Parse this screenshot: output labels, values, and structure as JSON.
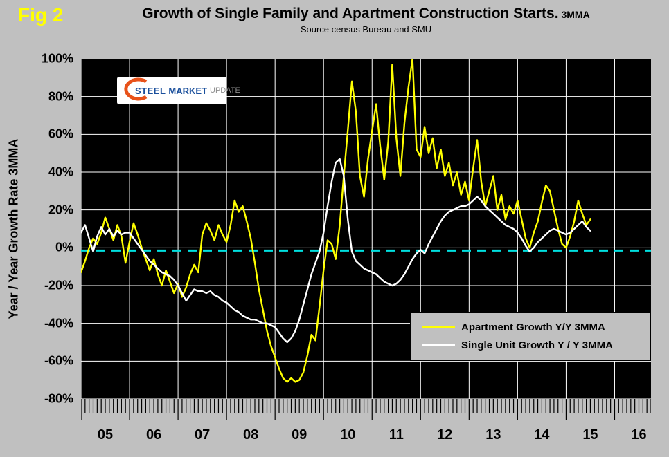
{
  "header": {
    "fig_label": "Fig 2",
    "title": "Growth of Single Family and Apartment Construction Starts.",
    "title_suffix": " 3MMA",
    "subtitle": "Source census Bureau and SMU"
  },
  "logo": {
    "part1": "STEEL",
    "part2": "MARKET",
    "part3": "UPDATE"
  },
  "axes": {
    "y_title": "Year / Year Growth Rate 3MMA",
    "y_range": [
      -80,
      100
    ],
    "x_range": [
      2005,
      2016.75
    ],
    "y_ticks": [
      {
        "value": 100,
        "label": "100%"
      },
      {
        "value": 80,
        "label": "80%"
      },
      {
        "value": 60,
        "label": "60%"
      },
      {
        "value": 40,
        "label": "40%"
      },
      {
        "value": 20,
        "label": "20%"
      },
      {
        "value": 0,
        "label": "0%"
      },
      {
        "value": -20,
        "label": "-20%"
      },
      {
        "value": -40,
        "label": "-40%"
      },
      {
        "value": -60,
        "label": "-60%"
      },
      {
        "value": -80,
        "label": "-80%"
      }
    ],
    "x_tick_labels": [
      {
        "year": 2005,
        "label": "05"
      },
      {
        "year": 2006,
        "label": "06"
      },
      {
        "year": 2007,
        "label": "07"
      },
      {
        "year": 2008,
        "label": "08"
      },
      {
        "year": 2009,
        "label": "09"
      },
      {
        "year": 2010,
        "label": "10"
      },
      {
        "year": 2011,
        "label": "11"
      },
      {
        "year": 2012,
        "label": "12"
      },
      {
        "year": 2013,
        "label": "13"
      },
      {
        "year": 2014,
        "label": "14"
      },
      {
        "year": 2015,
        "label": "15"
      },
      {
        "year": 2016,
        "label": "16"
      }
    ]
  },
  "legend": {
    "items": [
      {
        "label": "Apartment Growth Y/Y 3MMA",
        "color": "#ffff00"
      },
      {
        "label": "Single Unit Growth Y / Y 3MMA",
        "color": "#ffffff"
      }
    ]
  },
  "colors": {
    "page_bg": "#c0c0c0",
    "plot_bg": "#000000",
    "grid": "#ffffff",
    "zero_line": "#00e0e0",
    "fig_label": "#ffff00",
    "logo_swoosh": "#e8521a"
  },
  "chart_data": {
    "type": "line",
    "title": "Growth of Single Family and Apartment Construction Starts. 3MMA",
    "subtitle": "Source census Bureau and SMU",
    "xlabel": "",
    "ylabel": "Year / Year Growth Rate 3MMA",
    "ylim": [
      -80,
      100
    ],
    "x_start_year": 2005,
    "x_interval": "monthly",
    "x_end_year": 2015.5,
    "legend_position": "lower-right-inside",
    "grid": true,
    "reference_line": {
      "value": 0,
      "color": "#00e0e0",
      "style": "dashed"
    },
    "series": [
      {
        "name": "Apartment Growth Y/Y 3MMA",
        "color": "#ffff00",
        "values": [
          -13,
          -7,
          0,
          5,
          2,
          8,
          16,
          10,
          4,
          12,
          6,
          -8,
          3,
          13,
          7,
          0,
          -6,
          -12,
          -6,
          -14,
          -20,
          -12,
          -18,
          -24,
          -19,
          -26,
          -21,
          -14,
          -9,
          -13,
          7,
          13,
          9,
          4,
          12,
          7,
          3,
          12,
          25,
          19,
          22,
          14,
          5,
          -8,
          -22,
          -33,
          -44,
          -52,
          -58,
          -64,
          -69,
          -71,
          -69,
          -71,
          -70,
          -66,
          -57,
          -46,
          -49,
          -31,
          -12,
          4,
          2,
          -6,
          12,
          38,
          62,
          88,
          72,
          38,
          27,
          47,
          62,
          76,
          54,
          36,
          56,
          97,
          58,
          38,
          66,
          85,
          100,
          52,
          48,
          64,
          50,
          58,
          42,
          52,
          38,
          45,
          33,
          40,
          28,
          35,
          25,
          42,
          57,
          35,
          22,
          30,
          38,
          20,
          28,
          15,
          22,
          18,
          25,
          15,
          5,
          0,
          8,
          14,
          24,
          33,
          30,
          20,
          10,
          2,
          0,
          6,
          14,
          25,
          18,
          12,
          15
        ]
      },
      {
        "name": "Single Unit Growth Y / Y 3MMA",
        "color": "#ffffff",
        "values": [
          8,
          12,
          5,
          -2,
          6,
          11,
          7,
          10,
          6,
          9,
          7,
          8,
          8,
          5,
          2,
          -1,
          -4,
          -7,
          -9,
          -11,
          -13,
          -14,
          -15,
          -17,
          -20,
          -24,
          -28,
          -25,
          -22,
          -23,
          -23,
          -24,
          -23,
          -25,
          -26,
          -28,
          -29,
          -31,
          -33,
          -34,
          -36,
          -37,
          -38,
          -38,
          -39,
          -40,
          -40,
          -41,
          -42,
          -45,
          -48,
          -50,
          -48,
          -44,
          -38,
          -30,
          -22,
          -14,
          -8,
          -2,
          8,
          22,
          35,
          45,
          47,
          38,
          15,
          -2,
          -7,
          -9,
          -11,
          -12,
          -13,
          -14,
          -16,
          -18,
          -19,
          -20,
          -19,
          -17,
          -14,
          -10,
          -6,
          -3,
          -1,
          -3,
          2,
          6,
          10,
          14,
          17,
          19,
          20,
          21,
          22,
          22,
          23,
          25,
          27,
          25,
          22,
          20,
          18,
          16,
          14,
          12,
          11,
          10,
          8,
          5,
          1,
          -2,
          0,
          3,
          5,
          7,
          9,
          10,
          9,
          8,
          7,
          8,
          10,
          12,
          14,
          11,
          9
        ]
      }
    ]
  }
}
